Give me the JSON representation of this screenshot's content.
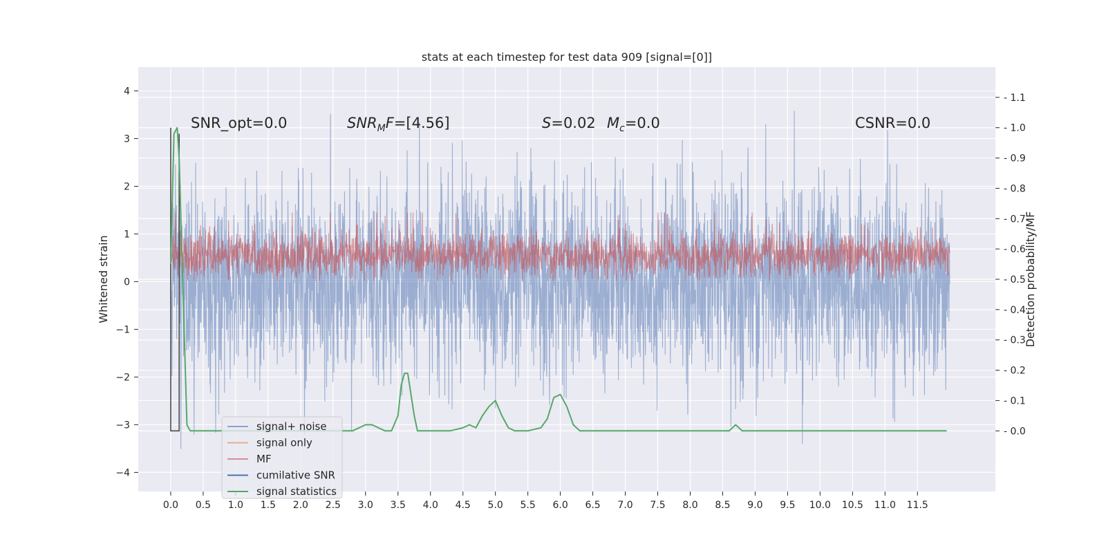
{
  "chart_data": {
    "type": "line",
    "title": "stats at each timestep for test data 909 [signal=[0]]",
    "xlabel": "",
    "ylabel": "Whitened strain",
    "ylabel_right": "Detection probability/MF",
    "xlim": [
      -0.5,
      12.7
    ],
    "ylim": [
      -4.4,
      4.5
    ],
    "ylim_right": [
      -0.2,
      1.2
    ],
    "x_ticks": [
      "0.0",
      "0.5",
      "1.0",
      "1.5",
      "2.0",
      "2.5",
      "3.0",
      "3.5",
      "4.0",
      "4.5",
      "5.0",
      "5.5",
      "6.0",
      "6.5",
      "7.0",
      "7.5",
      "8.0",
      "8.5",
      "9.0",
      "9.5",
      "10.0",
      "10.5",
      "11.0",
      "11.5"
    ],
    "y_ticks": [
      -4,
      -3,
      -2,
      -1,
      0,
      1,
      2,
      3,
      4
    ],
    "y_ticks_right": [
      0.0,
      0.1,
      0.2,
      0.3,
      0.4,
      0.5,
      0.6,
      0.7,
      0.8,
      0.9,
      1.0,
      1.1
    ],
    "grid": true,
    "background": "#eaeaf2",
    "annotations": [
      {
        "segments": [
          {
            "text": "SNR_opt=0.0",
            "italic": false
          }
        ]
      },
      {
        "segments": [
          {
            "text": "SNR",
            "italic": true
          },
          {
            "text": "M",
            "italic": true,
            "sub": true
          },
          {
            "text": "F",
            "italic": true
          },
          {
            "text": "=[4.56]",
            "italic": false
          }
        ]
      },
      {
        "segments": [
          {
            "text": "S",
            "italic": true
          },
          {
            "text": "=0.02",
            "italic": false
          }
        ]
      },
      {
        "segments": [
          {
            "text": "M",
            "italic": true
          },
          {
            "text": "c",
            "italic": true,
            "sub": true
          },
          {
            "text": "=0.0",
            "italic": false
          }
        ]
      },
      {
        "segments": [
          {
            "text": "CSNR=0.0",
            "italic": false
          }
        ]
      }
    ],
    "legend": {
      "placement": "lower-left",
      "entries": [
        {
          "label": "signal+ noise",
          "color": "#4c72b0"
        },
        {
          "label": "signal only",
          "color": "#dd8452"
        },
        {
          "label": "MF",
          "color": "#c44e52"
        },
        {
          "label": "cumilative SNR",
          "color": "#4c72b0"
        },
        {
          "label": "signal statistics",
          "color": "#55a868"
        }
      ]
    },
    "series": [
      {
        "name": "signal+ noise",
        "axis": "left",
        "color": "#4c72b0",
        "style": "dense noise, ~N(0,1), clipped to [-3.9, 4.1]",
        "x_range": [
          0.0,
          12.0
        ],
        "envelope": {
          "min": -3.9,
          "max": 4.1
        }
      },
      {
        "name": "MF",
        "axis": "right",
        "color": "#c44e52",
        "style": "dense noise around 0.56",
        "x_range": [
          0.0,
          12.0
        ],
        "envelope": {
          "min": 0.5,
          "max": 0.66
        }
      },
      {
        "name": "cumilative SNR",
        "axis": "right",
        "color": "#4c4c4c",
        "x": [
          0.0,
          0.0,
          0.13,
          0.13
        ],
        "y": [
          1.0,
          0.0,
          0.0,
          0.98
        ]
      },
      {
        "name": "signal statistics",
        "axis": "right",
        "color": "#55a868",
        "x": [
          0.0,
          0.05,
          0.1,
          0.13,
          0.17,
          0.25,
          0.3,
          0.5,
          1.0,
          1.5,
          2.0,
          2.5,
          2.8,
          3.0,
          3.1,
          3.3,
          3.4,
          3.5,
          3.55,
          3.6,
          3.65,
          3.7,
          3.75,
          3.8,
          3.9,
          4.0,
          4.3,
          4.5,
          4.6,
          4.7,
          4.8,
          4.9,
          5.0,
          5.1,
          5.2,
          5.3,
          5.5,
          5.7,
          5.8,
          5.9,
          6.0,
          6.1,
          6.2,
          6.3,
          6.5,
          7.0,
          7.5,
          7.9,
          8.0,
          8.2,
          8.6,
          8.7,
          8.8,
          9.0,
          9.5,
          10.0,
          10.3,
          10.4,
          10.6,
          11.0,
          11.5,
          11.95
        ],
        "y": [
          0.55,
          0.98,
          1.0,
          0.9,
          0.6,
          0.02,
          0.0,
          0.0,
          0.0,
          0.0,
          0.0,
          0.0,
          0.0,
          0.02,
          0.02,
          0.0,
          0.0,
          0.05,
          0.15,
          0.19,
          0.19,
          0.12,
          0.05,
          0.0,
          0.0,
          0.0,
          0.0,
          0.01,
          0.02,
          0.01,
          0.05,
          0.08,
          0.1,
          0.05,
          0.01,
          0.0,
          0.0,
          0.01,
          0.04,
          0.11,
          0.12,
          0.08,
          0.02,
          0.0,
          0.0,
          0.0,
          0.0,
          0.0,
          0.0,
          0.0,
          0.0,
          0.02,
          0.0,
          0.0,
          0.0,
          0.0,
          0.0,
          0.0,
          0.0,
          0.0,
          0.0,
          0.0
        ]
      }
    ]
  }
}
